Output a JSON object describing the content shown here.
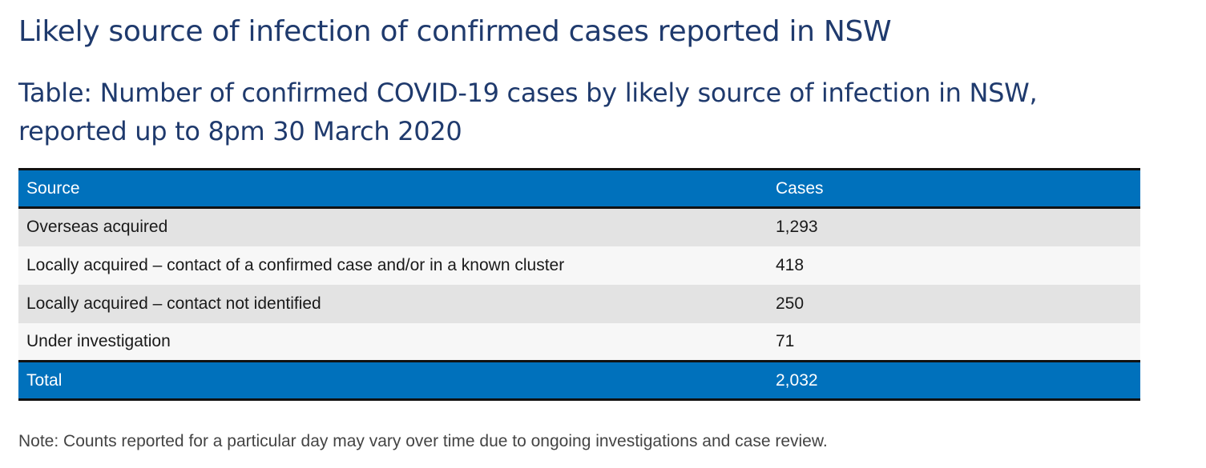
{
  "heading": "Likely source of infection of confirmed cases reported in NSW",
  "caption": "Table: Number of confirmed COVID-19 cases by likely source of infection in NSW, reported up to 8pm 30 March 2020",
  "table": {
    "columns": [
      "Source",
      "Cases"
    ],
    "rows": [
      [
        "Overseas acquired",
        "1,293"
      ],
      [
        "Locally acquired – contact of a confirmed case and/or in a known cluster",
        "418"
      ],
      [
        "Locally acquired – contact not identified",
        "250"
      ],
      [
        "Under investigation",
        "71"
      ]
    ],
    "total": [
      "Total",
      "2,032"
    ]
  },
  "note": "Note: Counts reported for a particular day may vary over time due to ongoing investigations and case review.",
  "colors": {
    "heading": "#1f3a6d",
    "header_bg": "#0071bc",
    "row_odd_bg": "#e3e3e3",
    "row_even_bg": "#f7f7f7",
    "rule": "#111111"
  }
}
